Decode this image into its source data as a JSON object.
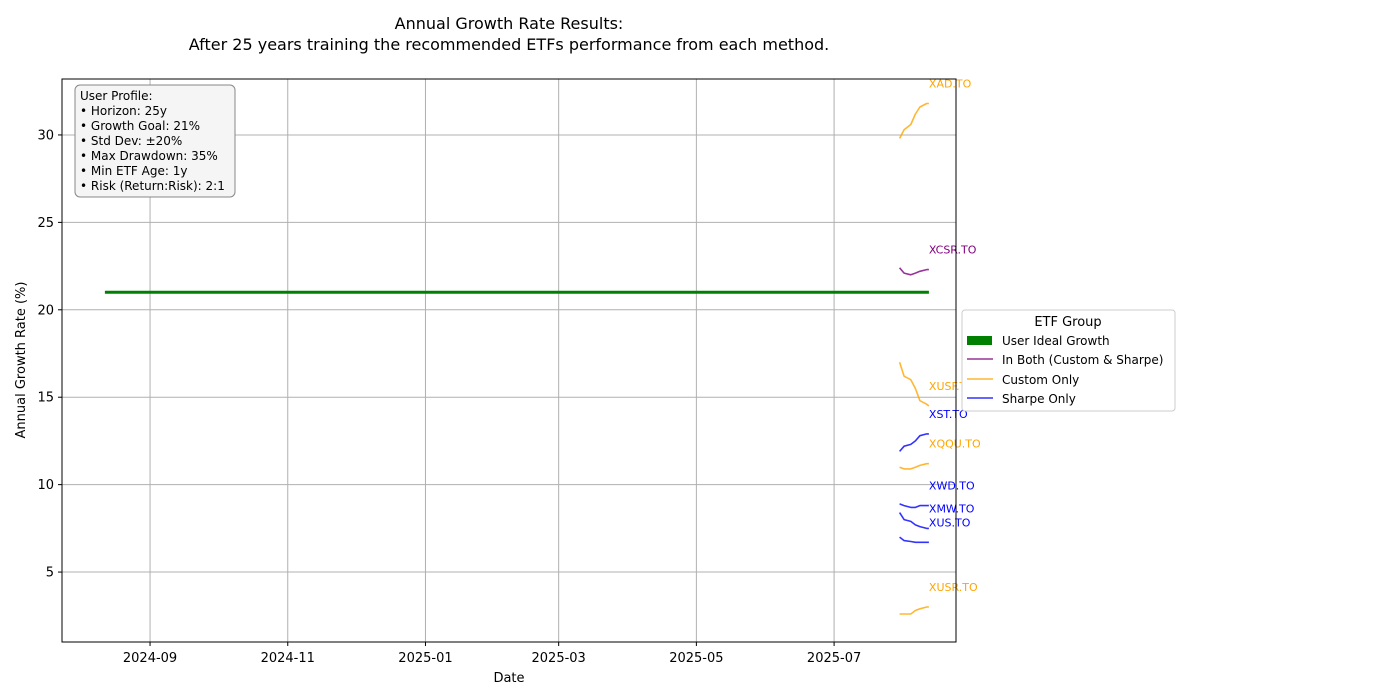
{
  "chart_data": {
    "type": "line",
    "title": "Annual Growth Rate Results:",
    "subtitle": "After 25 years training the recommended ETFs performance from each method.",
    "xlabel": "Date",
    "ylabel": "Annual Growth Rate (%)",
    "x_ticks": [
      "2024-09",
      "2024-11",
      "2025-01",
      "2025-03",
      "2025-05",
      "2025-07"
    ],
    "xlim": [
      "2024-07-24",
      "2025-08-24"
    ],
    "ylim": [
      1.0,
      33.2
    ],
    "y_ticks": [
      5,
      10,
      15,
      20,
      25,
      30
    ],
    "grid": true,
    "legend": {
      "title": "ETF Group",
      "placement": "center-right outside",
      "entries": [
        {
          "label": "User Ideal Growth",
          "color": "#008000",
          "style": "patch"
        },
        {
          "label": "In Both (Custom & Sharpe)",
          "color": "#800080",
          "style": "line"
        },
        {
          "label": "Custom Only",
          "color": "#FFA500",
          "style": "line"
        },
        {
          "label": "Sharpe Only",
          "color": "#0000FF",
          "style": "line"
        }
      ]
    },
    "ideal_line": {
      "name": "User Ideal Growth",
      "color": "#008000",
      "x": [
        "2024-08-12",
        "2025-08-12"
      ],
      "y": [
        21,
        21
      ]
    },
    "profile": {
      "lines": [
        "User Profile:",
        "• Horizon: 25y",
        "• Growth Goal: 21%",
        "• Std Dev: ±20%",
        "• Max Drawdown: 35%",
        "• Min ETF Age: 1y",
        "• Risk (Return:Risk): 2:1"
      ]
    },
    "series": [
      {
        "name": "XAD.TO",
        "group": "Custom Only",
        "color": "#FFA500",
        "x": [
          "2025-07-30",
          "2025-08-01",
          "2025-08-04",
          "2025-08-06",
          "2025-08-08",
          "2025-08-11",
          "2025-08-12"
        ],
        "y": [
          29.8,
          30.3,
          30.6,
          31.2,
          31.6,
          31.8,
          31.8
        ]
      },
      {
        "name": "XCSR.TO",
        "group": "In Both (Custom & Sharpe)",
        "color": "#800080",
        "x": [
          "2025-07-30",
          "2025-08-01",
          "2025-08-04",
          "2025-08-06",
          "2025-08-08",
          "2025-08-11",
          "2025-08-12"
        ],
        "y": [
          22.4,
          22.1,
          22.0,
          22.1,
          22.2,
          22.3,
          22.3
        ]
      },
      {
        "name": "XUSF.TO",
        "group": "Custom Only",
        "color": "#FFA500",
        "x": [
          "2025-07-30",
          "2025-08-01",
          "2025-08-04",
          "2025-08-06",
          "2025-08-08",
          "2025-08-11",
          "2025-08-12"
        ],
        "y": [
          17.0,
          16.2,
          16.0,
          15.5,
          14.8,
          14.6,
          14.5
        ]
      },
      {
        "name": "XST.TO",
        "group": "Sharpe Only",
        "color": "#0000FF",
        "x": [
          "2025-07-30",
          "2025-08-01",
          "2025-08-04",
          "2025-08-06",
          "2025-08-08",
          "2025-08-11",
          "2025-08-12"
        ],
        "y": [
          11.9,
          12.2,
          12.3,
          12.5,
          12.8,
          12.9,
          12.9
        ]
      },
      {
        "name": "XQQU.TO",
        "group": "Custom Only",
        "color": "#FFA500",
        "x": [
          "2025-07-30",
          "2025-08-01",
          "2025-08-04",
          "2025-08-06",
          "2025-08-08",
          "2025-08-11",
          "2025-08-12"
        ],
        "y": [
          11.0,
          10.9,
          10.9,
          11.0,
          11.1,
          11.2,
          11.2
        ]
      },
      {
        "name": "XWD.TO",
        "group": "Sharpe Only",
        "color": "#0000FF",
        "x": [
          "2025-07-30",
          "2025-08-01",
          "2025-08-04",
          "2025-08-06",
          "2025-08-08",
          "2025-08-11",
          "2025-08-12"
        ],
        "y": [
          8.9,
          8.8,
          8.7,
          8.7,
          8.8,
          8.8,
          8.8
        ]
      },
      {
        "name": "XMW.TO",
        "group": "Sharpe Only",
        "color": "#0000FF",
        "x": [
          "2025-07-30",
          "2025-08-01",
          "2025-08-04",
          "2025-08-06",
          "2025-08-08",
          "2025-08-11",
          "2025-08-12"
        ],
        "y": [
          8.4,
          8.0,
          7.9,
          7.7,
          7.6,
          7.5,
          7.5
        ]
      },
      {
        "name": "XUS.TO",
        "group": "Sharpe Only",
        "color": "#0000FF",
        "x": [
          "2025-07-30",
          "2025-08-01",
          "2025-08-04",
          "2025-08-06",
          "2025-08-08",
          "2025-08-11",
          "2025-08-12"
        ],
        "y": [
          7.0,
          6.8,
          6.75,
          6.7,
          6.7,
          6.7,
          6.7
        ]
      },
      {
        "name": "XUSR.TO",
        "group": "Custom Only",
        "color": "#FFA500",
        "x": [
          "2025-07-30",
          "2025-08-01",
          "2025-08-04",
          "2025-08-06",
          "2025-08-08",
          "2025-08-11",
          "2025-08-12"
        ],
        "y": [
          2.6,
          2.6,
          2.6,
          2.8,
          2.9,
          3.0,
          3.0
        ]
      }
    ]
  }
}
